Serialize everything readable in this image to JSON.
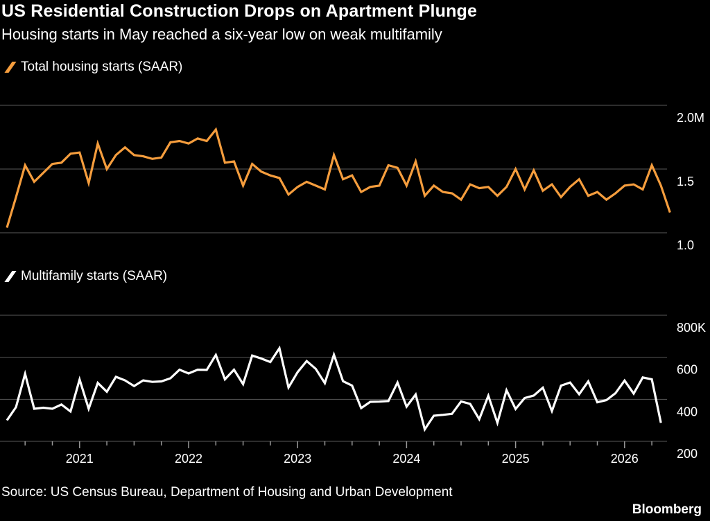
{
  "header": {
    "title": "US Residential Construction Drops on Apartment Plunge",
    "subtitle": "Housing starts in May reached a six-year low on weak multifamily"
  },
  "footer": {
    "source": "Source: US Census Bureau, Department of Housing and Urban Development",
    "brand": "Bloomberg"
  },
  "colors": {
    "total": "#f59d3d",
    "multifamily": "#ffffff",
    "grid": "#5a5a5a",
    "background": "#000000"
  },
  "chart_data": [
    {
      "type": "line",
      "legend": "Total housing starts (SAAR)",
      "ylim": [
        1.0,
        2.0
      ],
      "yticks": [
        "2.0M",
        "1.5",
        "1.0"
      ],
      "ytick_values": [
        2.0,
        1.5,
        1.0
      ],
      "grid": true,
      "x_start": "2020-05",
      "series": [
        {
          "values": [
            1.04,
            1.28,
            1.53,
            1.4,
            1.47,
            1.54,
            1.55,
            1.62,
            1.63,
            1.39,
            1.7,
            1.5,
            1.61,
            1.67,
            1.61,
            1.6,
            1.58,
            1.59,
            1.71,
            1.72,
            1.7,
            1.74,
            1.72,
            1.81,
            1.55,
            1.56,
            1.37,
            1.54,
            1.48,
            1.45,
            1.43,
            1.3,
            1.36,
            1.4,
            1.37,
            1.34,
            1.61,
            1.42,
            1.45,
            1.32,
            1.36,
            1.37,
            1.53,
            1.51,
            1.37,
            1.56,
            1.29,
            1.37,
            1.32,
            1.31,
            1.26,
            1.38,
            1.35,
            1.36,
            1.29,
            1.36,
            1.5,
            1.34,
            1.49,
            1.33,
            1.38,
            1.28,
            1.36,
            1.42,
            1.29,
            1.32,
            1.26,
            1.31,
            1.37,
            1.38,
            1.34,
            1.53,
            1.37,
            1.16
          ]
        }
      ]
    },
    {
      "type": "line",
      "legend": "Multifamily starts (SAAR)",
      "ylim": [
        200,
        800
      ],
      "yticks": [
        "800K",
        "600",
        "400",
        "200"
      ],
      "ytick_values": [
        800,
        600,
        400,
        200
      ],
      "xticks": [
        "2021",
        "2022",
        "2023",
        "2024",
        "2025",
        "2026"
      ],
      "xtick_dates": [
        "2021-01",
        "2022-01",
        "2023-01",
        "2024-01",
        "2025-01",
        "2026-01"
      ],
      "grid": true,
      "x_start": "2020-05",
      "series": [
        {
          "values": [
            300,
            363,
            521,
            355,
            360,
            355,
            375,
            342,
            494,
            355,
            478,
            436,
            507,
            490,
            463,
            490,
            483,
            485,
            500,
            541,
            523,
            541,
            540,
            611,
            495,
            541,
            472,
            608,
            594,
            577,
            643,
            456,
            529,
            582,
            545,
            477,
            612,
            486,
            465,
            358,
            388,
            389,
            392,
            480,
            365,
            423,
            257,
            322,
            326,
            331,
            390,
            378,
            305,
            417,
            288,
            443,
            354,
            406,
            418,
            455,
            344,
            465,
            480,
            424,
            485,
            386,
            396,
            429,
            489,
            427,
            504,
            495,
            288
          ]
        }
      ]
    }
  ]
}
